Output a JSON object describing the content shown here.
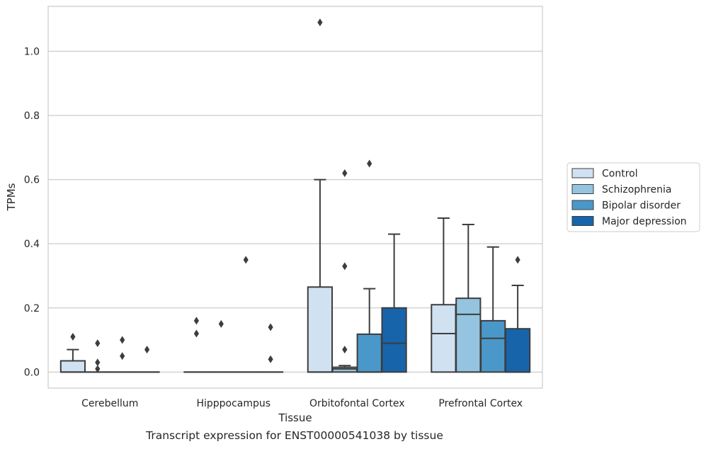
{
  "chart_data": {
    "type": "box",
    "title": "",
    "xlabel": "Tissue",
    "ylabel": "TPMs",
    "caption": "Transcript expression for ENST00000541038 by tissue",
    "categories": [
      "Cerebellum",
      "Hipppocampus",
      "Orbitofontal Cortex",
      "Prefrontal Cortex"
    ],
    "yticks": [
      "0.0",
      "0.2",
      "0.4",
      "0.6",
      "0.8",
      "1.0"
    ],
    "ylim": [
      -0.05,
      1.14
    ],
    "grid": "horizontal",
    "legend_position": "right",
    "series": [
      {
        "name": "Control",
        "color": "#d0e1f2",
        "boxes": [
          {
            "q1": 0.0,
            "median": 0.0,
            "q3": 0.035,
            "wlow": 0.0,
            "whigh": 0.07,
            "outliers": [
              0.11
            ]
          },
          {
            "q1": 0.0,
            "median": 0.0,
            "q3": 0.0,
            "wlow": 0.0,
            "whigh": 0.0,
            "outliers": [
              0.12,
              0.16
            ]
          },
          {
            "q1": 0.0,
            "median": 0.0,
            "q3": 0.265,
            "wlow": 0.0,
            "whigh": 0.6,
            "outliers": [
              1.09
            ]
          },
          {
            "q1": 0.0,
            "median": 0.12,
            "q3": 0.21,
            "wlow": 0.0,
            "whigh": 0.48,
            "outliers": []
          }
        ]
      },
      {
        "name": "Schizophrenia",
        "color": "#94c4df",
        "boxes": [
          {
            "q1": 0.0,
            "median": 0.0,
            "q3": 0.0,
            "wlow": 0.0,
            "whigh": 0.0,
            "outliers": [
              0.01,
              0.03,
              0.09
            ]
          },
          {
            "q1": 0.0,
            "median": 0.0,
            "q3": 0.0,
            "wlow": 0.0,
            "whigh": 0.0,
            "outliers": [
              0.15
            ]
          },
          {
            "q1": 0.0,
            "median": 0.01,
            "q3": 0.015,
            "wlow": 0.0,
            "whigh": 0.02,
            "outliers": [
              0.07,
              0.33,
              0.62
            ]
          },
          {
            "q1": 0.0,
            "median": 0.18,
            "q3": 0.23,
            "wlow": 0.0,
            "whigh": 0.46,
            "outliers": []
          }
        ]
      },
      {
        "name": "Bipolar disorder",
        "color": "#4a98c9",
        "boxes": [
          {
            "q1": 0.0,
            "median": 0.0,
            "q3": 0.0,
            "wlow": 0.0,
            "whigh": 0.0,
            "outliers": [
              0.05,
              0.1
            ]
          },
          {
            "q1": 0.0,
            "median": 0.0,
            "q3": 0.0,
            "wlow": 0.0,
            "whigh": 0.0,
            "outliers": [
              0.35
            ]
          },
          {
            "q1": 0.0,
            "median": 0.0,
            "q3": 0.118,
            "wlow": 0.0,
            "whigh": 0.26,
            "outliers": [
              0.65
            ]
          },
          {
            "q1": 0.0,
            "median": 0.105,
            "q3": 0.16,
            "wlow": 0.0,
            "whigh": 0.39,
            "outliers": []
          }
        ]
      },
      {
        "name": "Major depression",
        "color": "#1764ab",
        "boxes": [
          {
            "q1": 0.0,
            "median": 0.0,
            "q3": 0.0,
            "wlow": 0.0,
            "whigh": 0.0,
            "outliers": [
              0.07
            ]
          },
          {
            "q1": 0.0,
            "median": 0.0,
            "q3": 0.0,
            "wlow": 0.0,
            "whigh": 0.0,
            "outliers": [
              0.04,
              0.14
            ]
          },
          {
            "q1": 0.0,
            "median": 0.09,
            "q3": 0.2,
            "wlow": 0.0,
            "whigh": 0.43,
            "outliers": []
          },
          {
            "q1": 0.0,
            "median": 0.0,
            "q3": 0.135,
            "wlow": 0.0,
            "whigh": 0.27,
            "outliers": [
              0.35
            ]
          }
        ]
      }
    ]
  }
}
